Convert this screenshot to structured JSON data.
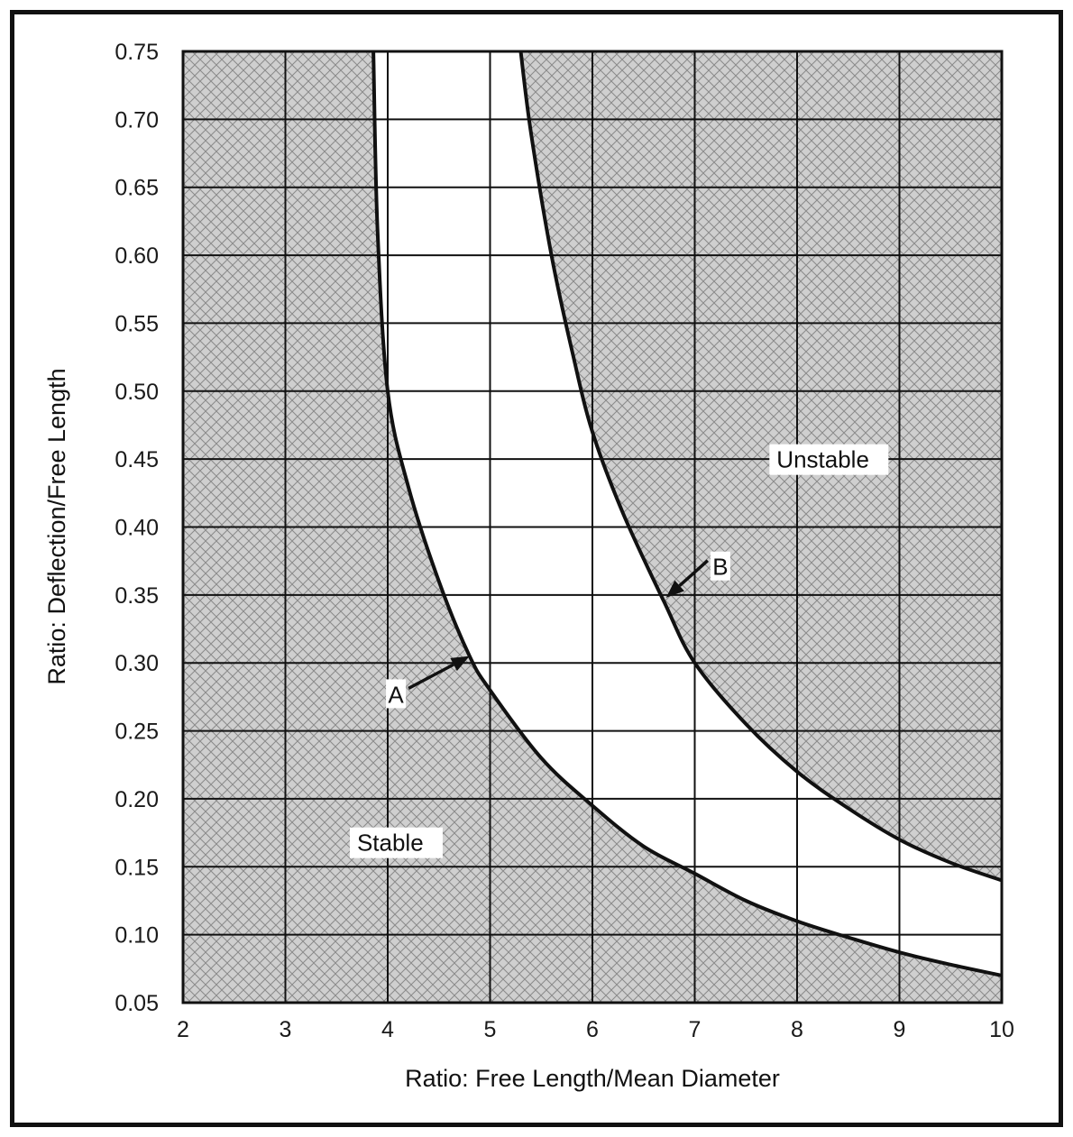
{
  "chart_data": {
    "type": "line",
    "xlabel": "Ratio: Free Length/Mean Diameter",
    "ylabel": "Ratio: Deflection/Free Length",
    "xlim": [
      2,
      10
    ],
    "ylim": [
      0.05,
      0.75
    ],
    "x_ticks": [
      "2",
      "3",
      "4",
      "5",
      "6",
      "7",
      "8",
      "9",
      "10"
    ],
    "y_ticks": [
      "0.05",
      "0.10",
      "0.15",
      "0.20",
      "0.25",
      "0.30",
      "0.35",
      "0.40",
      "0.45",
      "0.50",
      "0.55",
      "0.60",
      "0.65",
      "0.70",
      "0.75"
    ],
    "grid": true,
    "series": [
      {
        "name": "A",
        "x": [
          3.86,
          3.9,
          4.0,
          4.2,
          4.5,
          4.8,
          5.0,
          5.5,
          6.0,
          6.5,
          7.0,
          7.5,
          8.0,
          8.5,
          9.0,
          9.5,
          10.0
        ],
        "y": [
          0.75,
          0.62,
          0.5,
          0.43,
          0.36,
          0.305,
          0.28,
          0.23,
          0.195,
          0.165,
          0.145,
          0.125,
          0.11,
          0.098,
          0.087,
          0.078,
          0.07
        ]
      },
      {
        "name": "B",
        "x": [
          5.3,
          5.4,
          5.6,
          5.8,
          6.0,
          6.3,
          6.7,
          7.0,
          7.5,
          8.0,
          8.5,
          9.0,
          9.5,
          10.0
        ],
        "y": [
          0.75,
          0.69,
          0.6,
          0.53,
          0.47,
          0.41,
          0.345,
          0.3,
          0.255,
          0.22,
          0.193,
          0.17,
          0.153,
          0.14
        ]
      }
    ],
    "annotations": [
      {
        "text": "Unstable",
        "x": 7.8,
        "y": 0.445
      },
      {
        "text": "Stable",
        "x": 3.7,
        "y": 0.163
      },
      {
        "text": "A",
        "x": 4.08,
        "y": 0.272,
        "arrow_to": [
          4.8,
          0.305
        ]
      },
      {
        "text": "B",
        "x": 7.25,
        "y": 0.366,
        "arrow_to": [
          6.72,
          0.348
        ]
      }
    ],
    "shading": {
      "stable_region": "below curve A",
      "unstable_region": "above curve B",
      "pattern": "crosshatch",
      "fill_color": "#cfcfcf",
      "hatch_color": "#8a8a8a"
    },
    "line_color": "#111111"
  }
}
